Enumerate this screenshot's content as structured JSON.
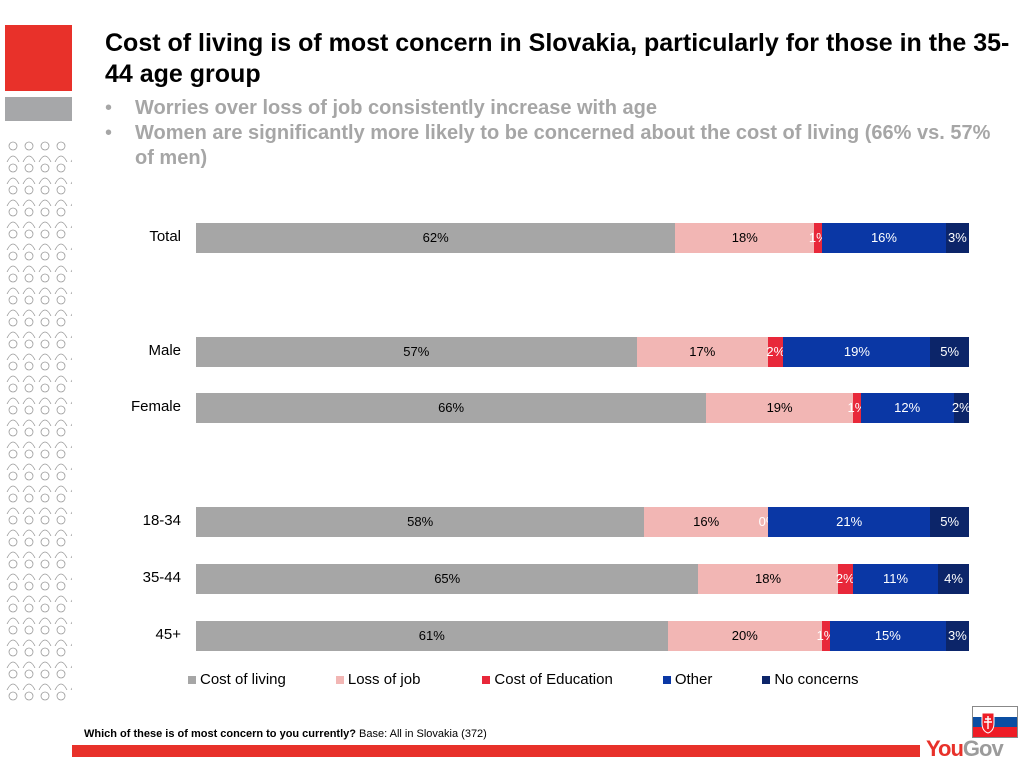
{
  "header": {
    "title": "Cost of living is of most concern in Slovakia, particularly for those in the 35-44 age group",
    "bullets": [
      "Worries over loss of job consistently increase with age",
      "Women are significantly more likely to be concerned about the cost of living (66% vs. 57% of men)"
    ]
  },
  "chart_data": {
    "type": "bar",
    "orientation": "horizontal",
    "stacked": "100%",
    "title": "Which of these is of most concern to you currently?",
    "categories": [
      "Total",
      "Male",
      "Female",
      "18-34",
      "35-44",
      "45+"
    ],
    "series": [
      {
        "name": "Cost of living",
        "color": "#a6a6a6",
        "label_color": "#000000",
        "values": [
          62,
          57,
          66,
          58,
          65,
          61
        ]
      },
      {
        "name": "Loss of job",
        "color": "#f2b6b4",
        "label_color": "#000000",
        "values": [
          18,
          17,
          19,
          16,
          18,
          20
        ]
      },
      {
        "name": "Cost of Education",
        "color": "#e8283a",
        "label_color": "#ffffff",
        "values": [
          1,
          2,
          1,
          0,
          2,
          1
        ]
      },
      {
        "name": "Other",
        "color": "#0a37a5",
        "label_color": "#ffffff",
        "values": [
          16,
          19,
          12,
          21,
          11,
          15
        ]
      },
      {
        "name": "No concerns",
        "color": "#0c2569",
        "label_color": "#ffffff",
        "values": [
          3,
          5,
          2,
          5,
          4,
          3
        ]
      }
    ],
    "value_suffix": "%",
    "xlim": [
      0,
      100
    ],
    "legend": "bottom",
    "grid": false
  },
  "footnote": {
    "question": "Which of these is of most concern to you currently?",
    "base": "Base: All in Slovakia (372)"
  },
  "brand": {
    "you": "You",
    "gov": "Gov"
  },
  "colors": {
    "brand_red": "#e8312a",
    "brand_gray": "#a6a7a9"
  }
}
